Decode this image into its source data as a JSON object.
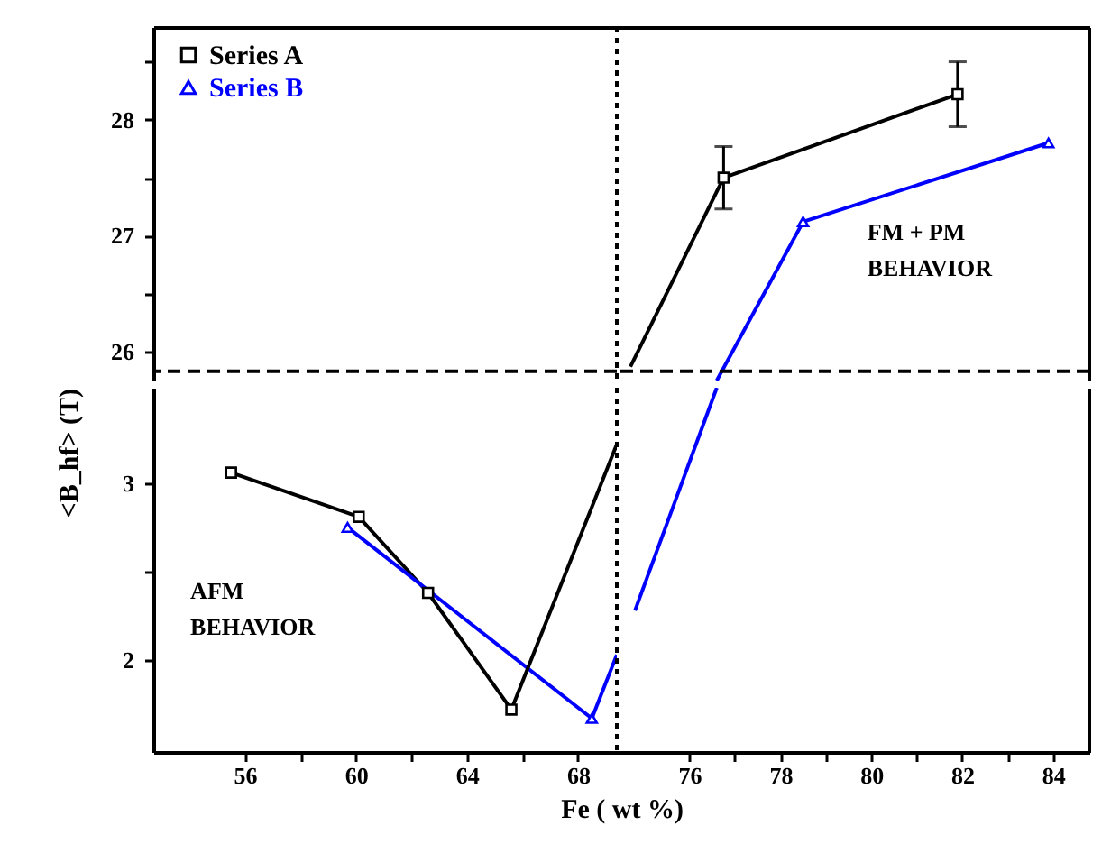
{
  "chart_data": [
    {
      "type": "line",
      "xlim": [
        52.7,
        69.4
      ],
      "ylim": [
        25.75,
        28.8
      ],
      "yticks": [
        26,
        {
          "value": 26.5,
          "label": null
        },
        27,
        {
          "value": 27.5,
          "label": null
        },
        28,
        {
          "value": 28.5,
          "label": null
        }
      ],
      "tick_labels": "y",
      "ref_lines": [
        {
          "axis": "y",
          "value": 25.83,
          "line_style": "dashed",
          "color": "#000000"
        },
        {
          "axis": "x",
          "value": 69.4,
          "line_style": "dotted",
          "color": "#000000"
        }
      ]
    },
    {
      "type": "line",
      "xlim": [
        74.4,
        84.8
      ],
      "ylim": [
        25.75,
        28.8
      ],
      "tick_labels": false,
      "legend": "top left",
      "series": [
        {
          "name": "Series A",
          "color": "#000000",
          "marker": "square",
          "x": [
            76.75,
            81.9
          ],
          "values": [
            27.5,
            28.22
          ],
          "errors": [
            0.27,
            0.28
          ]
        },
        {
          "name": "Series B",
          "color": "#0000ff",
          "marker": "triangle",
          "x": [
            78.5,
            83.9
          ],
          "values": [
            27.12,
            27.8
          ]
        },
        {
          "color": "#000000",
          "marker": "none",
          "x": [
            74.7,
            76.75
          ],
          "values": [
            25.87,
            27.5
          ]
        },
        {
          "color": "#0000ff",
          "marker": "none",
          "x": [
            76.6,
            78.5
          ],
          "values": [
            25.75,
            27.12
          ]
        }
      ],
      "ref_lines": [
        {
          "axis": "y",
          "value": 25.83,
          "line_style": "dashed",
          "color": "#000000"
        }
      ],
      "annotations": [
        "FM + PM\nBEHAVIOR"
      ]
    },
    {
      "type": "line",
      "xlabel": "Fe ( wt %)",
      "ylabel": "<B_hf> (T)",
      "xlim": [
        52.7,
        69.4
      ],
      "ylim": [
        1.48,
        3.54
      ],
      "xticks": [
        56,
        {
          "value": 58,
          "label": null
        },
        60,
        {
          "value": 62,
          "label": null
        },
        64,
        {
          "value": 66,
          "label": null
        },
        68
      ],
      "yticks": [
        2,
        {
          "value": 2.5,
          "label": null
        },
        3
      ],
      "series": [
        {
          "color": "#000000",
          "marker": "square",
          "x": [
            55.5,
            60.1,
            62.6,
            65.6
          ],
          "values": [
            3.06,
            2.81,
            2.38,
            1.72
          ]
        },
        {
          "color": "#0000ff",
          "marker": "triangle",
          "x": [
            59.7,
            68.5
          ],
          "values": [
            2.75,
            1.67
          ]
        },
        {
          "color": "#000000",
          "marker": "none",
          "x": [
            65.6,
            69.4
          ],
          "values": [
            1.72,
            3.22
          ]
        },
        {
          "color": "#0000ff",
          "marker": "none",
          "x": [
            68.5,
            69.4
          ],
          "values": [
            1.67,
            2.03
          ]
        }
      ],
      "ref_lines": [
        {
          "axis": "x",
          "value": 69.4,
          "line_style": "dotted",
          "color": "#000000"
        }
      ],
      "annotations": [
        "AFM\nBEHAVIOR"
      ]
    },
    {
      "type": "line",
      "xlim": [
        74.4,
        84.8
      ],
      "ylim": [
        1.48,
        3.54
      ],
      "xticks": [
        76,
        {
          "value": 77,
          "label": null
        },
        78,
        {
          "value": 79,
          "label": null
        },
        80,
        {
          "value": 81,
          "label": null
        },
        82,
        {
          "value": 83,
          "label": null
        },
        84
      ],
      "tick_labels": "x",
      "series": [
        {
          "color": "#0000ff",
          "marker": "none",
          "x": [
            74.8,
            76.6
          ],
          "values": [
            2.28,
            3.54
          ]
        }
      ]
    }
  ]
}
